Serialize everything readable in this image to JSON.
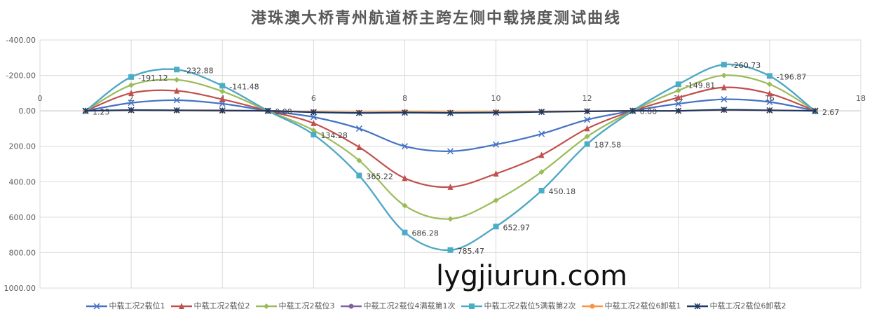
{
  "chart_data": {
    "type": "line",
    "title": "港珠澳大桥青州航道桥主跨左侧中载挠度测试曲线",
    "xlim": [
      0,
      18
    ],
    "xticks": [
      0,
      2,
      4,
      6,
      8,
      10,
      12,
      14,
      16,
      18
    ],
    "ylim": [
      -400,
      1000
    ],
    "y_reversed": true,
    "yticks": [
      "-400.00",
      "-200.00",
      "0.00",
      "200.00",
      "400.00",
      "600.00",
      "800.00",
      "1000.00"
    ],
    "ytick_values": [
      -400,
      -200,
      0,
      200,
      400,
      600,
      800,
      1000
    ],
    "grid": true,
    "smooth": true,
    "legend_position": "bottom",
    "x": [
      1,
      2,
      3,
      4,
      5,
      6,
      7,
      8,
      9,
      10,
      11,
      12,
      13,
      14,
      15,
      16,
      17
    ],
    "series": [
      {
        "name": "中载工况2载位1",
        "color": "#4472C4",
        "marker": "x",
        "values": [
          0,
          -45,
          -60,
          -40,
          0,
          35,
          100,
          200,
          228,
          190,
          130,
          50,
          0,
          -40,
          -65,
          -50,
          0
        ]
      },
      {
        "name": "中载工况2载位2",
        "color": "#C0504D",
        "marker": "triangle",
        "values": [
          0,
          -100,
          -113,
          -65,
          0,
          70,
          205,
          380,
          430,
          355,
          250,
          100,
          0,
          -75,
          -132,
          -97,
          0
        ]
      },
      {
        "name": "中载工况2载位3",
        "color": "#9BBB59",
        "marker": "diamond",
        "values": [
          0,
          -145,
          -175,
          -110,
          0,
          110,
          280,
          535,
          610,
          505,
          345,
          145,
          0,
          -115,
          -200,
          -150,
          0
        ]
      },
      {
        "name": "中载工况2载位4满载第1次",
        "color": "#8064A2",
        "marker": "circle",
        "values": [
          1.25,
          -191.12,
          -232.88,
          -141.48,
          0,
          134.28,
          365.22,
          686.28,
          785.47,
          652.97,
          450.18,
          187.58,
          0,
          -149.81,
          -260.73,
          -196.87,
          2.67
        ]
      },
      {
        "name": "中载工况2载位5满载第2次",
        "color": "#4BACC6",
        "marker": "square",
        "values": [
          1.25,
          -191.12,
          -232.88,
          -141.48,
          0,
          134.28,
          365.22,
          686.28,
          785.47,
          652.97,
          450.18,
          187.58,
          0,
          -149.81,
          -260.73,
          -196.87,
          2.67
        ],
        "labels": [
          "1.25",
          "-191.12",
          "-232.88",
          "-141.48",
          "0.00",
          "134.28",
          "365.22",
          "686.28",
          "785.47",
          "652.97",
          "450.18",
          "187.58",
          "0.00",
          "-149.81",
          "-260.73",
          "-196.87",
          "2.67"
        ]
      },
      {
        "name": "中载工况2载位6卸载1",
        "color": "#F79646",
        "marker": "circle",
        "values": [
          0,
          -3,
          -2,
          0,
          0,
          5,
          8,
          5,
          7,
          6,
          4,
          2,
          0,
          0,
          -5,
          -3,
          0
        ]
      },
      {
        "name": "中载工况2载位6卸载2",
        "color": "#1F3864",
        "marker": "star",
        "values": [
          0,
          -4,
          -3,
          -2,
          0,
          8,
          12,
          10,
          12,
          10,
          6,
          3,
          0,
          0,
          -6,
          -3,
          0
        ]
      }
    ]
  },
  "watermark": "lygjiurun.com"
}
